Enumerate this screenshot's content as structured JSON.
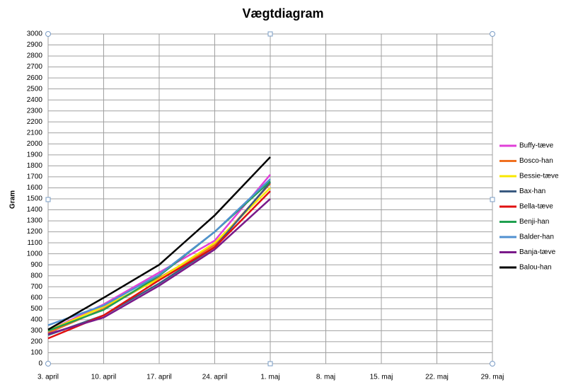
{
  "chart_data": {
    "type": "line",
    "title": "Vægtdiagram",
    "y_label": "Gram",
    "categories": [
      "3. april",
      "10. april",
      "17. april",
      "24. april",
      "1. maj",
      "8. maj",
      "15. maj",
      "22. maj",
      "29. maj"
    ],
    "series": [
      {
        "name": "Buffy-tæve",
        "color": "#e040d8",
        "values": [
          300,
          540,
          830,
          1120,
          1720,
          null,
          null,
          null,
          null
        ]
      },
      {
        "name": "Bosco-han",
        "color": "#f07020",
        "values": [
          280,
          500,
          780,
          1080,
          1640,
          null,
          null,
          null,
          null
        ]
      },
      {
        "name": "Bessie-tæve",
        "color": "#f8e800",
        "values": [
          300,
          520,
          770,
          1100,
          1600,
          null,
          null,
          null,
          null
        ]
      },
      {
        "name": "Bax-han",
        "color": "#3a5a80",
        "values": [
          260,
          440,
          730,
          1060,
          1650,
          null,
          null,
          null,
          null
        ]
      },
      {
        "name": "Bella-tæve",
        "color": "#e01010",
        "values": [
          230,
          440,
          760,
          1060,
          1570,
          null,
          null,
          null,
          null
        ]
      },
      {
        "name": "Benji-han",
        "color": "#20a050",
        "values": [
          300,
          490,
          800,
          1200,
          1660,
          null,
          null,
          null,
          null
        ]
      },
      {
        "name": "Balder-han",
        "color": "#5090d0",
        "values": [
          350,
          530,
          810,
          1200,
          1680,
          null,
          null,
          null,
          null
        ]
      },
      {
        "name": "Banja-tæve",
        "color": "#7a1a8a",
        "values": [
          270,
          420,
          710,
          1040,
          1500,
          null,
          null,
          null,
          null
        ]
      },
      {
        "name": "Balou-han",
        "color": "#000000",
        "values": [
          310,
          600,
          900,
          1350,
          1880,
          null,
          null,
          null,
          null
        ]
      }
    ],
    "ylim": [
      0,
      3000
    ],
    "yticks": [
      0,
      100,
      200,
      300,
      400,
      500,
      600,
      700,
      800,
      900,
      1000,
      1100,
      1200,
      1300,
      1400,
      1500,
      1600,
      1700,
      1800,
      1900,
      2000,
      2100,
      2200,
      2300,
      2400,
      2500,
      2600,
      2700,
      2800,
      2900,
      3000
    ],
    "grid": true,
    "legend": "right"
  }
}
